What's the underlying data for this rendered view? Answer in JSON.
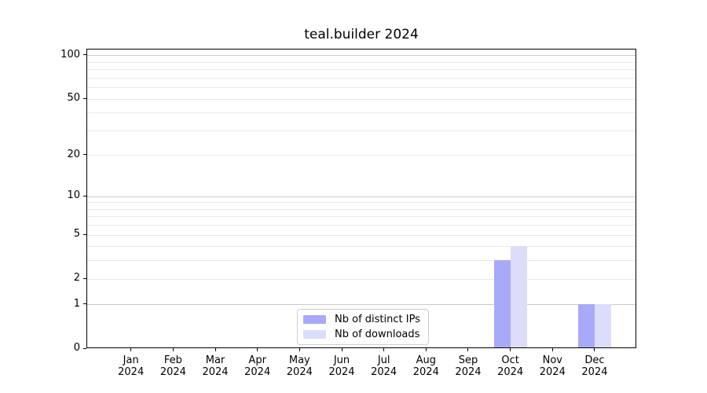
{
  "chart_data": {
    "type": "bar",
    "title": "teal.builder 2024",
    "categories": [
      "Jan",
      "Feb",
      "Mar",
      "Apr",
      "May",
      "Jun",
      "Jul",
      "Aug",
      "Sep",
      "Oct",
      "Nov",
      "Dec"
    ],
    "x_year_label": "2024",
    "series": [
      {
        "name": "Nb of distinct IPs",
        "color": "#a9a9fa",
        "values": [
          0,
          0,
          0,
          0,
          0,
          0,
          0,
          0,
          0,
          3,
          0,
          1
        ]
      },
      {
        "name": "Nb of downloads",
        "color": "#dcdcfb",
        "values": [
          0,
          0,
          0,
          0,
          0,
          0,
          0,
          0,
          0,
          4,
          0,
          1
        ]
      }
    ],
    "y_axis": {
      "scale": "log1p",
      "tick_values": [
        0,
        1,
        2,
        5,
        10,
        20,
        50,
        100
      ],
      "tick_labels": [
        "0",
        "1",
        "2",
        "5",
        "10",
        "20",
        "50",
        "100"
      ],
      "major_gridlines": [
        1,
        10,
        100
      ],
      "minor_gridlines": [
        2,
        3,
        4,
        5,
        6,
        7,
        8,
        9,
        20,
        30,
        40,
        50,
        60,
        70,
        80,
        90
      ],
      "ylim": [
        0,
        100
      ]
    },
    "legend_position": "lower center",
    "grid": true
  },
  "colors": {
    "background": "#ffffff",
    "spine": "#000000",
    "text": "#000000",
    "major_grid": "#c9c9c9",
    "minor_grid": "#e9e9e9",
    "legend_border": "#cccccc"
  }
}
